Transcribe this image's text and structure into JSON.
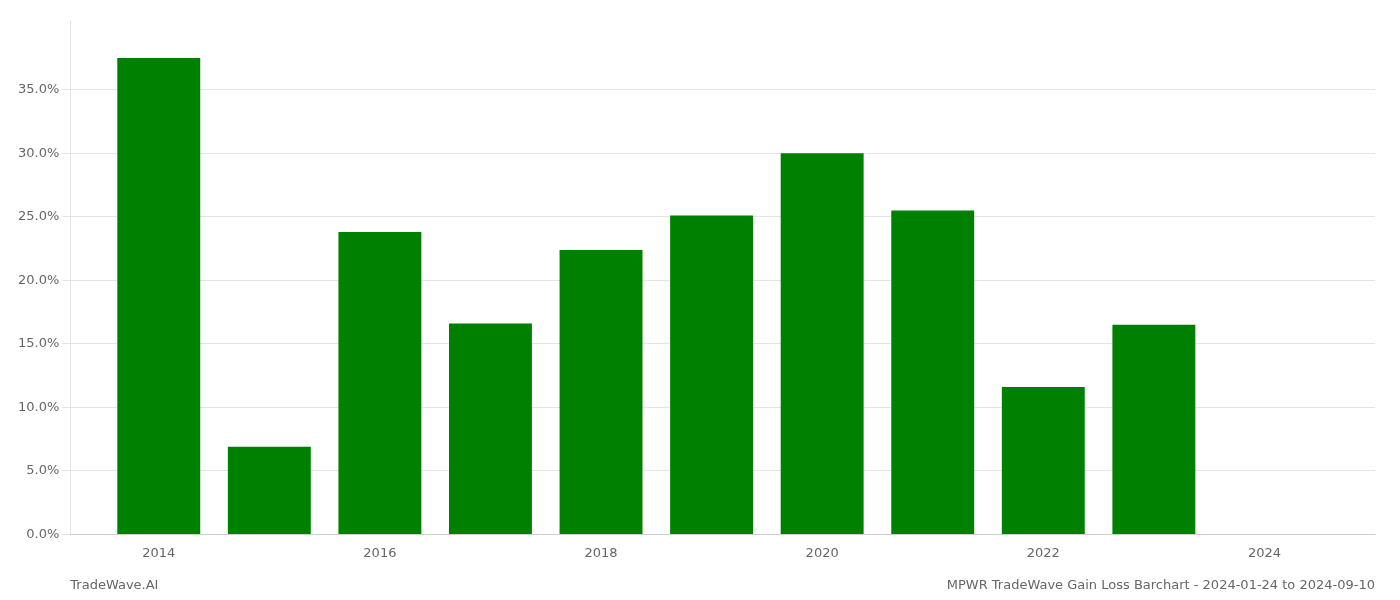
{
  "chart_data": {
    "type": "bar",
    "x": [
      2014,
      2015,
      2016,
      2017,
      2018,
      2019,
      2020,
      2021,
      2022,
      2023
    ],
    "values": [
      0.375,
      0.069,
      0.238,
      0.166,
      0.224,
      0.251,
      0.3,
      0.255,
      0.116,
      0.165
    ],
    "color": "#008000",
    "xlim": [
      2013.2,
      2025.0
    ],
    "xticks": [
      2014,
      2016,
      2018,
      2020,
      2022,
      2024
    ],
    "ylim": [
      0,
      0.405
    ],
    "yticks": [
      {
        "value": 0.0,
        "label": "0.0%"
      },
      {
        "value": 0.05,
        "label": "5.0%"
      },
      {
        "value": 0.1,
        "label": "10.0%"
      },
      {
        "value": 0.15,
        "label": "15.0%"
      },
      {
        "value": 0.2,
        "label": "20.0%"
      },
      {
        "value": 0.25,
        "label": "25.0%"
      },
      {
        "value": 0.3,
        "label": "30.0%"
      },
      {
        "value": 0.35,
        "label": "35.0%"
      }
    ],
    "grid": true,
    "annotations": [
      "TradeWave.AI",
      "MPWR TradeWave Gain Loss Barchart - 2024-01-24 to 2024-09-10"
    ]
  }
}
